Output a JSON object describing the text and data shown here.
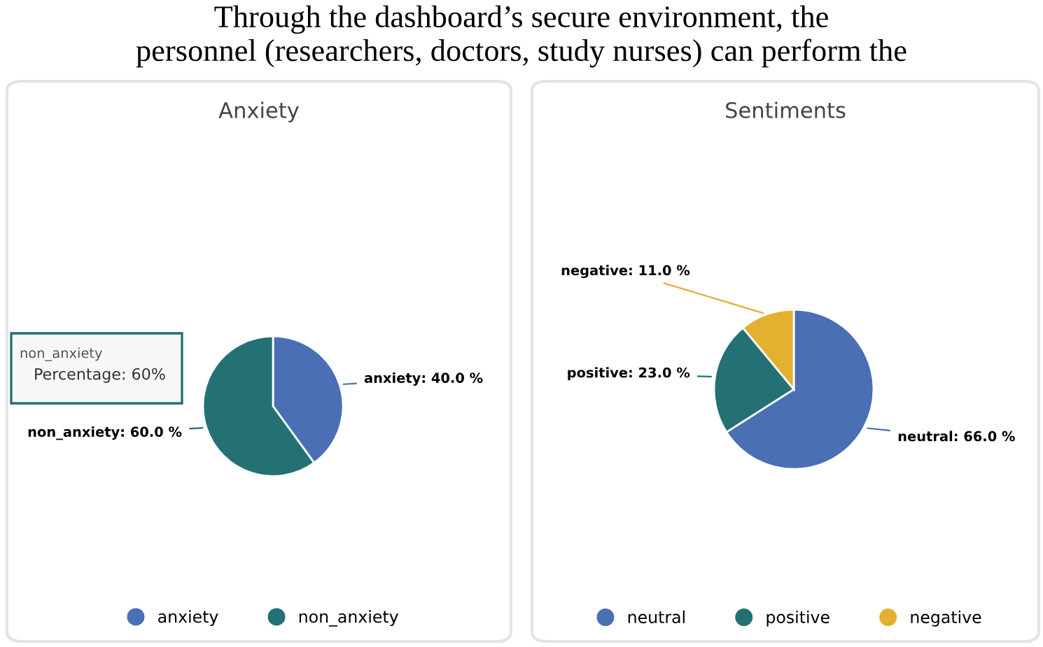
{
  "chart_data": [
    {
      "type": "pie",
      "title": "Anxiety",
      "categories": [
        "anxiety",
        "non_anxiety"
      ],
      "values": [
        40,
        60
      ],
      "colors": [
        "#4a6fb5",
        "#237175"
      ],
      "value_labels": [
        "anxiety: 40.0 %",
        "non_anxiety: 60.0 %"
      ],
      "legend": "bottom",
      "annotations": [
        "Through the dashboard’s secure environment, the",
        "personnel (researchers, doctors, study nurses) can perform the",
        "non_anxiety",
        "Percentage: 60%"
      ]
    },
    {
      "type": "pie",
      "title": "Sentiments",
      "categories": [
        "neutral",
        "positive",
        "negative"
      ],
      "values": [
        66,
        23,
        11
      ],
      "colors": [
        "#4a6fb5",
        "#237175",
        "#e3b030"
      ],
      "value_labels": [
        "neutral: 66.0 %",
        "positive: 23.0 %",
        "negative: 11.0 %"
      ],
      "legend": "bottom"
    }
  ]
}
